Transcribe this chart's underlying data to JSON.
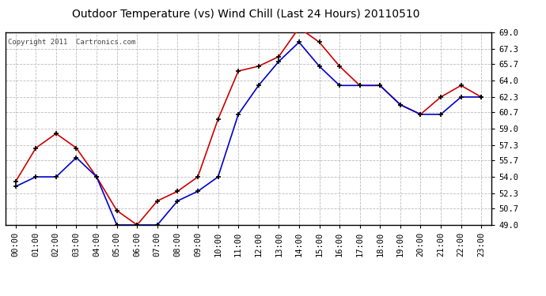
{
  "title": "Outdoor Temperature (vs) Wind Chill (Last 24 Hours) 20110510",
  "copyright": "Copyright 2011  Cartronics.com",
  "x_labels": [
    "00:00",
    "01:00",
    "02:00",
    "03:00",
    "04:00",
    "05:00",
    "06:00",
    "07:00",
    "08:00",
    "09:00",
    "10:00",
    "11:00",
    "12:00",
    "13:00",
    "14:00",
    "15:00",
    "16:00",
    "17:00",
    "18:00",
    "19:00",
    "20:00",
    "21:00",
    "22:00",
    "23:00"
  ],
  "temp": [
    53.5,
    57.0,
    58.5,
    57.0,
    54.0,
    50.5,
    49.0,
    51.5,
    52.5,
    54.0,
    60.0,
    65.0,
    65.5,
    66.5,
    69.5,
    68.0,
    65.5,
    63.5,
    63.5,
    61.5,
    60.5,
    62.3,
    63.5,
    62.3
  ],
  "wind_chill": [
    53.0,
    54.0,
    54.0,
    56.0,
    54.0,
    49.0,
    49.0,
    49.0,
    51.5,
    52.5,
    54.0,
    60.5,
    63.5,
    66.0,
    68.0,
    65.5,
    63.5,
    63.5,
    63.5,
    61.5,
    60.5,
    60.5,
    62.3,
    62.3
  ],
  "temp_color": "#cc0000",
  "wind_chill_color": "#0000cc",
  "bg_color": "#ffffff",
  "plot_bg_color": "#ffffff",
  "grid_color": "#bbbbbb",
  "y_ticks": [
    49.0,
    50.7,
    52.3,
    54.0,
    55.7,
    57.3,
    59.0,
    60.7,
    62.3,
    64.0,
    65.7,
    67.3,
    69.0
  ],
  "y_min": 49.0,
  "y_max": 69.0,
  "title_fontsize": 10,
  "copyright_fontsize": 6.5,
  "tick_fontsize": 7.5
}
